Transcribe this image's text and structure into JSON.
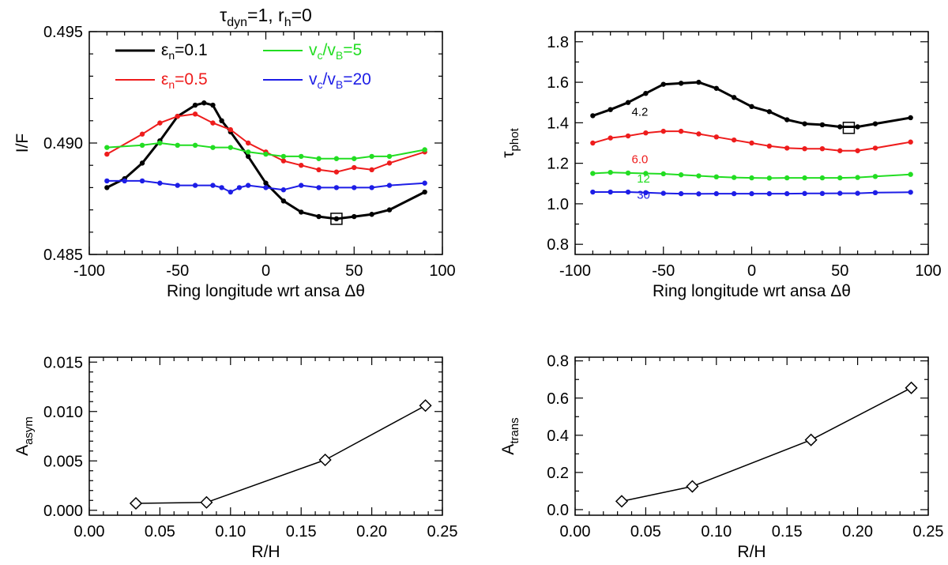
{
  "chart_data": [
    {
      "id": "if",
      "type": "line",
      "title": {
        "tau": "τ",
        "dyn": "dyn",
        "mid": "=1, r",
        "h": "h",
        "end": "=0"
      },
      "xlabel": "Ring longitude wrt ansa  Δθ",
      "ylabel": "I/F",
      "xlim": [
        -100,
        100
      ],
      "ylim": [
        0.485,
        0.495
      ],
      "xticks": [
        -100,
        -50,
        0,
        50,
        100
      ],
      "xtick_labels": [
        "-100",
        "-50",
        "0",
        "50",
        "100"
      ],
      "yticks": [
        0.485,
        0.49,
        0.495
      ],
      "ytick_labels": [
        "0.485",
        "0.490",
        "0.495"
      ],
      "yminor": [
        0.486,
        0.487,
        0.488,
        0.489,
        0.491,
        0.492,
        0.493,
        0.494
      ],
      "legend": [
        {
          "series": 0,
          "sym": "ε",
          "sub": "n",
          "text": "=0.1"
        },
        {
          "series": 1,
          "sym": "ε",
          "sub": "n",
          "text": "=0.5"
        },
        {
          "series": 2,
          "v1": "v",
          "s1": "c",
          "slash": "/v",
          "s2": "B",
          "text": "=5"
        },
        {
          "series": 3,
          "v1": "v",
          "s1": "c",
          "slash": "/v",
          "s2": "B",
          "text": "=20"
        }
      ],
      "marker": {
        "x": 40,
        "y": 0.4866
      },
      "series": [
        {
          "name": "εn=0.1",
          "color": "#000000",
          "width": 3,
          "x": [
            -90,
            -80,
            -70,
            -60,
            -50,
            -40,
            -35,
            -30,
            -25,
            -20,
            -10,
            0,
            10,
            20,
            30,
            40,
            50,
            60,
            70,
            90
          ],
          "y": [
            0.488,
            0.4884,
            0.4891,
            0.4901,
            0.4912,
            0.4917,
            0.4918,
            0.4917,
            0.491,
            0.4905,
            0.4894,
            0.4882,
            0.4874,
            0.4869,
            0.4867,
            0.4866,
            0.4867,
            0.4868,
            0.487,
            0.4878
          ]
        },
        {
          "name": "εn=0.5",
          "color": "#ee1c1c",
          "width": 2,
          "x": [
            -90,
            -70,
            -60,
            -50,
            -40,
            -30,
            -20,
            -10,
            0,
            10,
            20,
            30,
            40,
            50,
            60,
            70,
            90
          ],
          "y": [
            0.4895,
            0.4904,
            0.4909,
            0.4912,
            0.4913,
            0.4909,
            0.4906,
            0.49,
            0.4896,
            0.4892,
            0.489,
            0.4888,
            0.4887,
            0.4889,
            0.4888,
            0.4891,
            0.4896
          ]
        },
        {
          "name": "vc/vB=5",
          "color": "#22dd22",
          "width": 2,
          "x": [
            -90,
            -70,
            -60,
            -50,
            -40,
            -30,
            -20,
            -10,
            0,
            10,
            20,
            30,
            40,
            50,
            60,
            70,
            90
          ],
          "y": [
            0.4898,
            0.4899,
            0.49,
            0.4899,
            0.4899,
            0.4898,
            0.4898,
            0.4896,
            0.4895,
            0.4894,
            0.4894,
            0.4893,
            0.4893,
            0.4893,
            0.4894,
            0.4894,
            0.4897
          ]
        },
        {
          "name": "vc/vB=20",
          "color": "#1d1de6",
          "width": 2,
          "x": [
            -90,
            -80,
            -70,
            -60,
            -50,
            -40,
            -30,
            -25,
            -20,
            -15,
            -10,
            0,
            10,
            20,
            30,
            40,
            50,
            60,
            70,
            90
          ],
          "y": [
            0.4883,
            0.4883,
            0.4883,
            0.4882,
            0.4881,
            0.4881,
            0.4881,
            0.488,
            0.4878,
            0.488,
            0.4881,
            0.488,
            0.4879,
            0.4881,
            0.488,
            0.488,
            0.488,
            0.488,
            0.4881,
            0.4882
          ]
        }
      ]
    },
    {
      "id": "tau",
      "type": "line",
      "xlabel": "Ring longitude wrt ansa  Δθ",
      "ylabel": {
        "main": "τ",
        "sub": "phot"
      },
      "xlim": [
        -100,
        100
      ],
      "ylim": [
        0.75,
        1.85
      ],
      "xticks": [
        -100,
        -50,
        0,
        50,
        100
      ],
      "xtick_labels": [
        "-100",
        "-50",
        "0",
        "50",
        "100"
      ],
      "yticks": [
        0.8,
        1.0,
        1.2,
        1.4,
        1.6,
        1.8
      ],
      "ytick_labels": [
        "0.8",
        "1.0",
        "1.2",
        "1.4",
        "1.6",
        "1.8"
      ],
      "yminor": [
        0.9,
        1.1,
        1.3,
        1.5,
        1.7
      ],
      "marker": {
        "x": 55,
        "y": 1.375
      },
      "annotations": [
        {
          "text": "4.2",
          "x": -68,
          "y": 1.435,
          "series": 0
        },
        {
          "text": "6.0",
          "x": -68,
          "y": 1.2,
          "series": 1
        },
        {
          "text": "12",
          "x": -65,
          "y": 1.105,
          "series": 2
        },
        {
          "text": "30",
          "x": -65,
          "y": 1.025,
          "series": 3
        }
      ],
      "series": [
        {
          "name": "4.2",
          "color": "#000000",
          "width": 3,
          "x": [
            -90,
            -80,
            -70,
            -60,
            -50,
            -40,
            -30,
            -20,
            -10,
            0,
            10,
            20,
            30,
            40,
            50,
            60,
            70,
            90
          ],
          "y": [
            1.435,
            1.465,
            1.5,
            1.545,
            1.59,
            1.595,
            1.6,
            1.57,
            1.525,
            1.48,
            1.455,
            1.415,
            1.395,
            1.39,
            1.38,
            1.38,
            1.395,
            1.425
          ]
        },
        {
          "name": "6.0",
          "color": "#ee1c1c",
          "width": 2,
          "x": [
            -90,
            -80,
            -70,
            -60,
            -50,
            -40,
            -30,
            -20,
            -10,
            0,
            10,
            20,
            30,
            40,
            50,
            60,
            70,
            90
          ],
          "y": [
            1.3,
            1.325,
            1.335,
            1.35,
            1.358,
            1.358,
            1.345,
            1.33,
            1.315,
            1.3,
            1.285,
            1.275,
            1.272,
            1.272,
            1.262,
            1.262,
            1.275,
            1.305
          ]
        },
        {
          "name": "12",
          "color": "#22dd22",
          "width": 2,
          "x": [
            -90,
            -80,
            -70,
            -60,
            -50,
            -40,
            -30,
            -20,
            -10,
            0,
            10,
            20,
            30,
            40,
            50,
            60,
            70,
            90
          ],
          "y": [
            1.15,
            1.155,
            1.152,
            1.15,
            1.148,
            1.143,
            1.138,
            1.133,
            1.13,
            1.128,
            1.127,
            1.128,
            1.128,
            1.128,
            1.128,
            1.13,
            1.135,
            1.145
          ]
        },
        {
          "name": "30",
          "color": "#1d1de6",
          "width": 2,
          "x": [
            -90,
            -80,
            -70,
            -60,
            -50,
            -40,
            -30,
            -20,
            -10,
            0,
            10,
            20,
            30,
            40,
            50,
            60,
            70,
            90
          ],
          "y": [
            1.058,
            1.058,
            1.058,
            1.055,
            1.052,
            1.05,
            1.049,
            1.05,
            1.05,
            1.05,
            1.05,
            1.05,
            1.051,
            1.051,
            1.052,
            1.052,
            1.055,
            1.057
          ]
        }
      ]
    },
    {
      "id": "asym",
      "type": "line",
      "xlabel": "R/H",
      "ylabel": {
        "main": "A",
        "sub": "asym"
      },
      "xlim": [
        0,
        0.25
      ],
      "ylim": [
        -0.0005,
        0.0155
      ],
      "xticks": [
        0,
        0.05,
        0.1,
        0.15,
        0.2,
        0.25
      ],
      "xtick_labels": [
        "0.00",
        "0.05",
        "0.10",
        "0.15",
        "0.20",
        "0.25"
      ],
      "xminor": [
        0.01,
        0.02,
        0.03,
        0.04,
        0.06,
        0.07,
        0.08,
        0.09,
        0.11,
        0.12,
        0.13,
        0.14,
        0.16,
        0.17,
        0.18,
        0.19,
        0.21,
        0.22,
        0.23,
        0.24
      ],
      "yticks": [
        0,
        0.005,
        0.01,
        0.015
      ],
      "ytick_labels": [
        "0.000",
        "0.005",
        "0.010",
        "0.015"
      ],
      "yminor": [
        0.001,
        0.002,
        0.003,
        0.004,
        0.006,
        0.007,
        0.008,
        0.009,
        0.011,
        0.012,
        0.013,
        0.014
      ],
      "series": [
        {
          "name": "Aasym",
          "color": "#000000",
          "width": 1.5,
          "marker": "diamond",
          "x": [
            0.033,
            0.083,
            0.167,
            0.238
          ],
          "y": [
            0.0007,
            0.0008,
            0.0051,
            0.0106
          ]
        }
      ]
    },
    {
      "id": "trans",
      "type": "line",
      "xlabel": "R/H",
      "ylabel": {
        "main": "A",
        "sub": "trans"
      },
      "xlim": [
        0,
        0.25
      ],
      "ylim": [
        -0.03,
        0.82
      ],
      "xticks": [
        0,
        0.05,
        0.1,
        0.15,
        0.2,
        0.25
      ],
      "xtick_labels": [
        "0.00",
        "0.05",
        "0.10",
        "0.15",
        "0.20",
        "0.25"
      ],
      "xminor": [
        0.01,
        0.02,
        0.03,
        0.04,
        0.06,
        0.07,
        0.08,
        0.09,
        0.11,
        0.12,
        0.13,
        0.14,
        0.16,
        0.17,
        0.18,
        0.19,
        0.21,
        0.22,
        0.23,
        0.24
      ],
      "yticks": [
        0,
        0.2,
        0.4,
        0.6,
        0.8
      ],
      "ytick_labels": [
        "0.0",
        "0.2",
        "0.4",
        "0.6",
        "0.8"
      ],
      "yminor": [
        0.1,
        0.3,
        0.5,
        0.7
      ],
      "series": [
        {
          "name": "Atrans",
          "color": "#000000",
          "width": 1.5,
          "marker": "diamond",
          "x": [
            0.033,
            0.083,
            0.167,
            0.238
          ],
          "y": [
            0.045,
            0.125,
            0.375,
            0.655
          ]
        }
      ]
    }
  ]
}
